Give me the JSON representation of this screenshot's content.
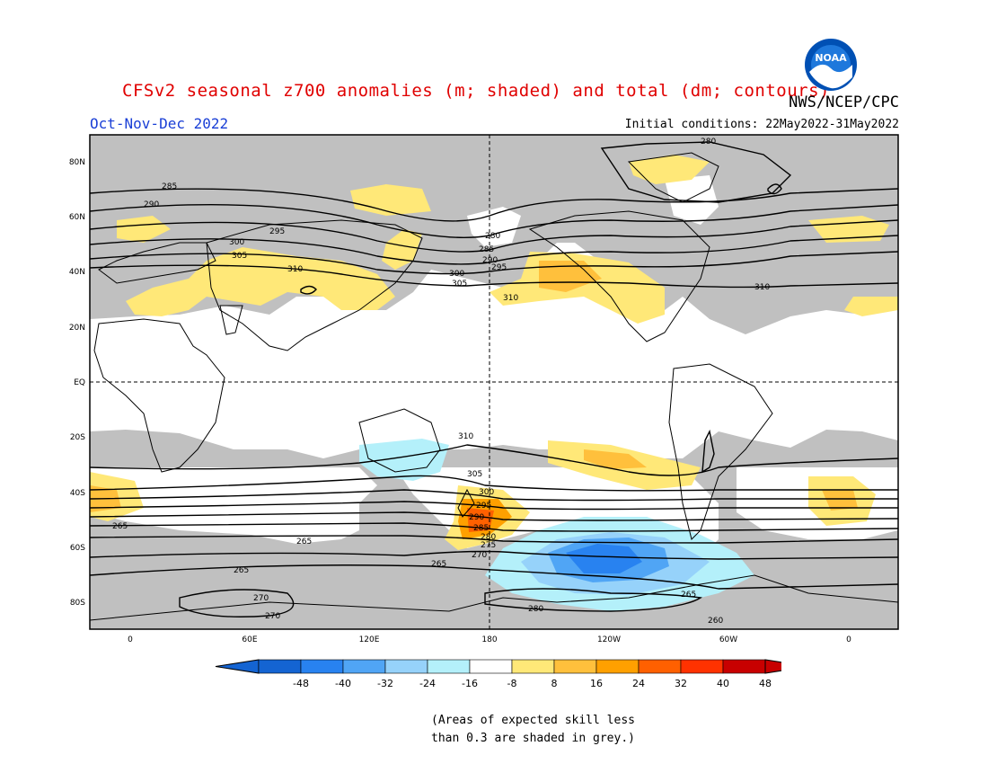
{
  "header": {
    "title": "CFSv2 seasonal z700 anomalies (m; shaded) and total (dm; contours)",
    "agency": "NWS/NCEP/CPC",
    "period": "Oct-Nov-Dec 2022",
    "initial_conditions": "Initial conditions: 22May2022-31May2022",
    "logo_text": "NOAA"
  },
  "map": {
    "lat_labels": [
      "80N",
      "60N",
      "40N",
      "20N",
      "EQ",
      "20S",
      "40S",
      "60S",
      "80S"
    ],
    "lon_labels": [
      "0",
      "60E",
      "120E",
      "180",
      "120W",
      "60W",
      "0"
    ],
    "contour_labels": [
      "280",
      "285",
      "290",
      "295",
      "300",
      "305",
      "310",
      "280",
      "285",
      "290",
      "295",
      "300",
      "305",
      "310",
      "310",
      "310",
      "305",
      "300",
      "295",
      "290",
      "285",
      "280",
      "275",
      "270",
      "265",
      "265",
      "265",
      "270",
      "270",
      "265",
      "260",
      "265",
      "280"
    ],
    "colors": {
      "land_outline": "#000000",
      "skill_grey": "#c0c0c0",
      "background": "#ffffff"
    }
  },
  "colorbar": {
    "tick_labels": [
      "-48",
      "-40",
      "-32",
      "-24",
      "-16",
      "-8",
      "8",
      "16",
      "24",
      "32",
      "40",
      "48"
    ],
    "bins": [
      {
        "color": "#1464d2"
      },
      {
        "color": "#2882f0"
      },
      {
        "color": "#50a5f5"
      },
      {
        "color": "#96d2fa"
      },
      {
        "color": "#b4f0fa"
      },
      {
        "color": "#ffffff"
      },
      {
        "color": "#ffe878"
      },
      {
        "color": "#ffc03c"
      },
      {
        "color": "#ffa000"
      },
      {
        "color": "#ff6000"
      },
      {
        "color": "#ff3200"
      },
      {
        "color": "#c80000"
      }
    ]
  },
  "note": {
    "line1": "(Areas of expected skill less",
    "line2": "than 0.3 are shaded in grey.)"
  }
}
